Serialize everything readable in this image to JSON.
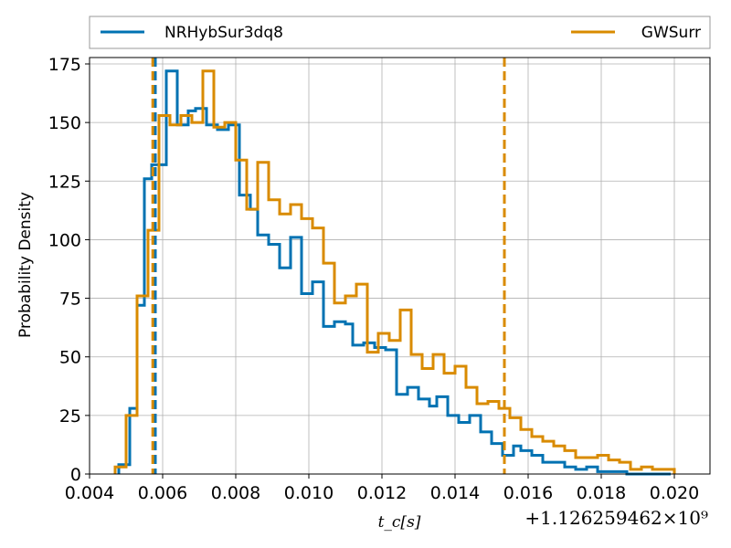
{
  "chart_data": {
    "type": "histogram-step",
    "xlabel": "t_c[s]",
    "ylabel": "Probability Density",
    "x_offset_text": "+1.126259462×10⁹",
    "xlim": [
      0.004,
      0.0207
    ],
    "ylim": [
      0,
      181
    ],
    "x_ticks": [
      0.004,
      0.006,
      0.008,
      0.01,
      0.012,
      0.014,
      0.016,
      0.018,
      0.02
    ],
    "x_tick_labels": [
      "0.004",
      "0.006",
      "0.008",
      "0.010",
      "0.012",
      "0.014",
      "0.016",
      "0.018",
      "0.020"
    ],
    "y_ticks": [
      0,
      25,
      50,
      75,
      100,
      125,
      150,
      175
    ],
    "y_tick_labels": [
      "0",
      "25",
      "50",
      "75",
      "100",
      "125",
      "150",
      "175"
    ],
    "grid": true,
    "legend_placement": "top (above plot), two columns",
    "series": [
      {
        "name": "NRHybSur3dq8",
        "color": "#0072b2",
        "bin_edges": [
          0.0048,
          0.0051,
          0.0053,
          0.0055,
          0.0057,
          0.0058,
          0.0061,
          0.0064,
          0.0067,
          0.0069,
          0.0072,
          0.0075,
          0.0078,
          0.0081,
          0.0084,
          0.0086,
          0.0089,
          0.0092,
          0.0095,
          0.0098,
          0.0101,
          0.0104,
          0.0107,
          0.011,
          0.0112,
          0.0115,
          0.0118,
          0.0121,
          0.0124,
          0.0127,
          0.013,
          0.0133,
          0.0135,
          0.0138,
          0.0141,
          0.0144,
          0.0147,
          0.015,
          0.0153,
          0.0156,
          0.0158,
          0.0161,
          0.0164,
          0.0167,
          0.017,
          0.0173,
          0.0176,
          0.0179,
          0.0181,
          0.0184,
          0.0187,
          0.019,
          0.0193,
          0.0196,
          0.0199
        ],
        "values": [
          4,
          28,
          72,
          126,
          132,
          132,
          172,
          149,
          155,
          156,
          149,
          147,
          149,
          119,
          113,
          102,
          98,
          88,
          101,
          77,
          82,
          63,
          65,
          64,
          55,
          56,
          54,
          53,
          34,
          37,
          32,
          29,
          33,
          25,
          22,
          25,
          18,
          13,
          8,
          12,
          10,
          8,
          5,
          5,
          3,
          2,
          3,
          1,
          1,
          1,
          0,
          0,
          0,
          0
        ]
      },
      {
        "name": "GWSurr",
        "color": "#d98b00",
        "bin_edges": [
          0.0047,
          0.005,
          0.0053,
          0.0056,
          0.0059,
          0.0062,
          0.0065,
          0.0068,
          0.0071,
          0.0074,
          0.0077,
          0.008,
          0.0083,
          0.0086,
          0.0089,
          0.0092,
          0.0095,
          0.0098,
          0.0101,
          0.0104,
          0.0107,
          0.011,
          0.0113,
          0.0116,
          0.0119,
          0.0122,
          0.0125,
          0.0128,
          0.0131,
          0.0134,
          0.0137,
          0.014,
          0.0143,
          0.0146,
          0.0149,
          0.0152,
          0.0155,
          0.0158,
          0.0161,
          0.0164,
          0.0167,
          0.017,
          0.0173,
          0.0176,
          0.0179,
          0.0182,
          0.0185,
          0.0188,
          0.0191,
          0.0194,
          0.0197,
          0.02
        ],
        "values": [
          3,
          25,
          76,
          104,
          153,
          149,
          153,
          150,
          172,
          148,
          150,
          134,
          113,
          133,
          117,
          111,
          115,
          109,
          105,
          90,
          73,
          76,
          81,
          52,
          60,
          57,
          70,
          51,
          45,
          51,
          43,
          46,
          37,
          30,
          31,
          28,
          24,
          19,
          16,
          14,
          12,
          10,
          7,
          7,
          8,
          6,
          5,
          2,
          3,
          2,
          2
        ]
      }
    ],
    "vlines": [
      {
        "series": "NRHybSur3dq8",
        "x": 0.0058,
        "color": "#0072b2"
      },
      {
        "series": "NRHybSur3dq8",
        "x": 0.01535,
        "color": "#0072b2"
      },
      {
        "series": "GWSurr",
        "x": 0.00573,
        "color": "#d98b00"
      },
      {
        "series": "GWSurr",
        "x": 0.01535,
        "color": "#d98b00"
      }
    ]
  }
}
